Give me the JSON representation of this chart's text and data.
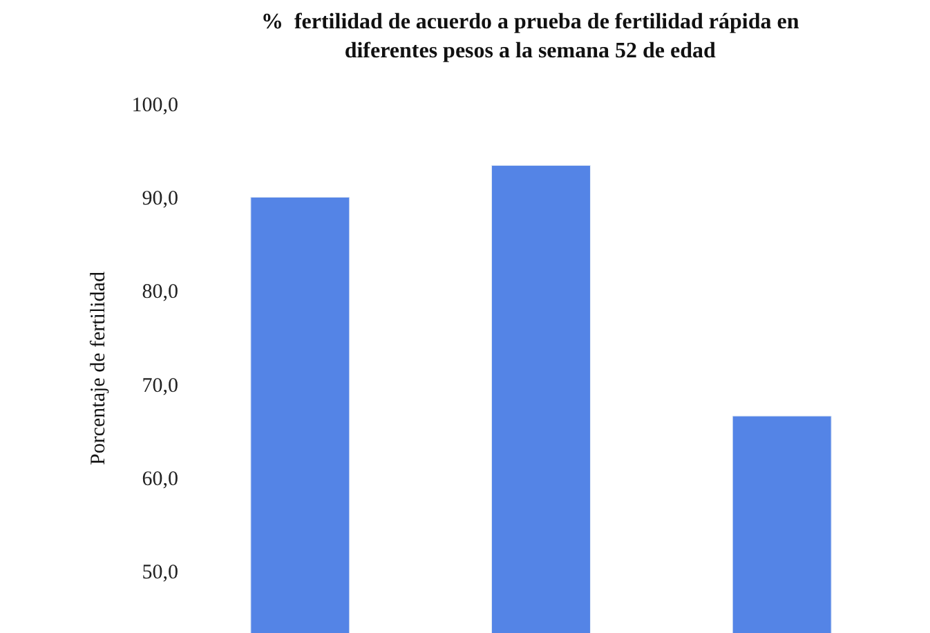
{
  "chart_data": {
    "type": "bar",
    "title": "%  fertilidad de acuerdo a prueba de fertilidad rápida en\ndiferentes pesos a la semana 52 de edad",
    "ylabel": "Porcentaje de fertilidad",
    "categories": [
      null,
      null,
      null
    ],
    "values": [
      90.0,
      93.4,
      66.6
    ],
    "color": "#5484e6",
    "ylim": [
      43.4,
      100
    ],
    "yticks": [
      {
        "value": 50,
        "label": "50,0"
      },
      {
        "value": 60,
        "label": "60,0"
      },
      {
        "value": 70,
        "label": "70,0"
      },
      {
        "value": 80,
        "label": "80,0"
      },
      {
        "value": 90,
        "label": "90,0"
      },
      {
        "value": 100,
        "label": "100,0"
      }
    ],
    "tick_labels": "y"
  }
}
